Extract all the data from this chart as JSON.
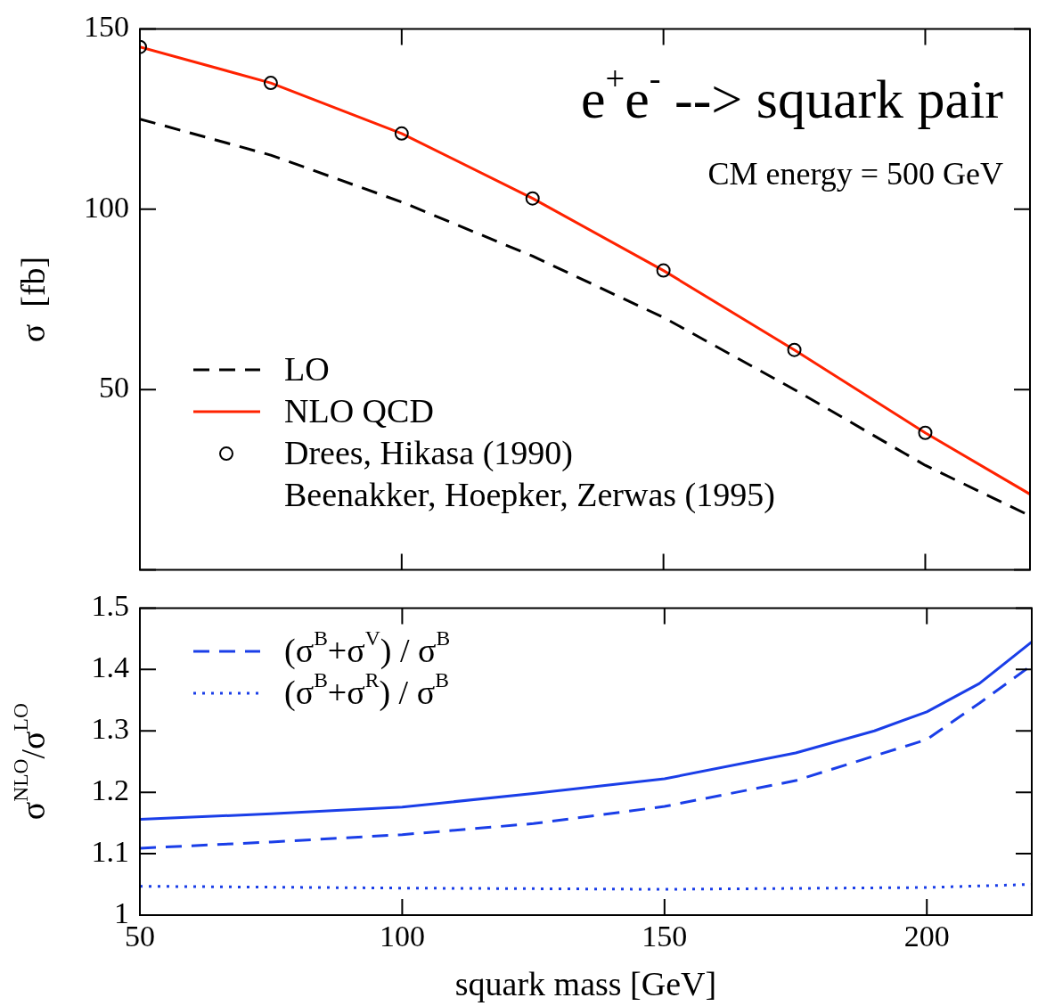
{
  "chart_data": [
    {
      "type": "line",
      "ylabel": "σ  [fb]",
      "annotations": [
        "e$^{+}$e$^{-}$ --> squark pair",
        "CM energy = 500 GeV"
      ],
      "xlim": [
        50,
        220
      ],
      "xticks": [
        50,
        100,
        150,
        200
      ],
      "ylim": [
        0,
        150
      ],
      "yticks": [
        {
          "value": 0,
          "label": null
        },
        50,
        100,
        150
      ],
      "tick_labels": "y",
      "grid": false,
      "legend": "bottom left",
      "series": [
        {
          "name": "LO",
          "color": "#000000",
          "line_style": "dashed",
          "marker": "none",
          "x": [
            50,
            75,
            100,
            125,
            150,
            175,
            200,
            220
          ],
          "values": [
            125,
            115,
            102,
            87,
            70,
            50,
            29,
            15
          ]
        },
        {
          "name": "NLO QCD",
          "color": "#ff2200",
          "line_style": "solid",
          "marker": "none",
          "x": [
            50,
            75,
            100,
            125,
            150,
            175,
            200,
            220
          ],
          "values": [
            145,
            135,
            121,
            103,
            83,
            61,
            38,
            21
          ]
        },
        {
          "name": "Drees, Hikasa (1990)\nBeenakker, Hoepker, Zerwas (1995)",
          "type": "scatter",
          "color": "#000000",
          "marker": "circle",
          "x": [
            50,
            75,
            100,
            125,
            150,
            175,
            200
          ],
          "values": [
            145,
            135,
            121,
            103,
            83,
            61,
            38
          ]
        }
      ]
    },
    {
      "type": "line",
      "xlabel": "squark mass [GeV]",
      "ylabel": "σ$^{NLO}$/σ$^{LO}$",
      "xlim": [
        50,
        220
      ],
      "xticks": [
        50,
        100,
        150,
        200
      ],
      "ylim": [
        1,
        1.5
      ],
      "yticks": [
        1,
        1.1,
        1.2,
        1.3,
        1.4,
        1.5
      ],
      "grid": false,
      "legend": "top left",
      "series": [
        {
          "color": "#1a3ee8",
          "line_style": "solid",
          "marker": "none",
          "x": [
            50,
            75,
            100,
            125,
            150,
            175,
            190,
            200,
            210,
            220
          ],
          "values": [
            1.156,
            1.165,
            1.176,
            1.198,
            1.222,
            1.264,
            1.3,
            1.331,
            1.377,
            1.445
          ]
        },
        {
          "name": "(σ$^{B}$+σ$^{V}$) / σ$^{B}$",
          "color": "#1a3ee8",
          "line_style": "dashed",
          "marker": "none",
          "x": [
            50,
            75,
            100,
            125,
            150,
            175,
            200,
            210,
            220
          ],
          "values": [
            1.109,
            1.119,
            1.131,
            1.149,
            1.177,
            1.219,
            1.286,
            1.345,
            1.407
          ]
        },
        {
          "name": "(σ$^{B}$+σ$^{R}$) / σ$^{B}$",
          "color": "#1a3ee8",
          "line_style": "dotted",
          "marker": "none",
          "x": [
            50,
            100,
            150,
            200,
            220
          ],
          "values": [
            1.047,
            1.044,
            1.042,
            1.045,
            1.05
          ]
        }
      ]
    }
  ]
}
